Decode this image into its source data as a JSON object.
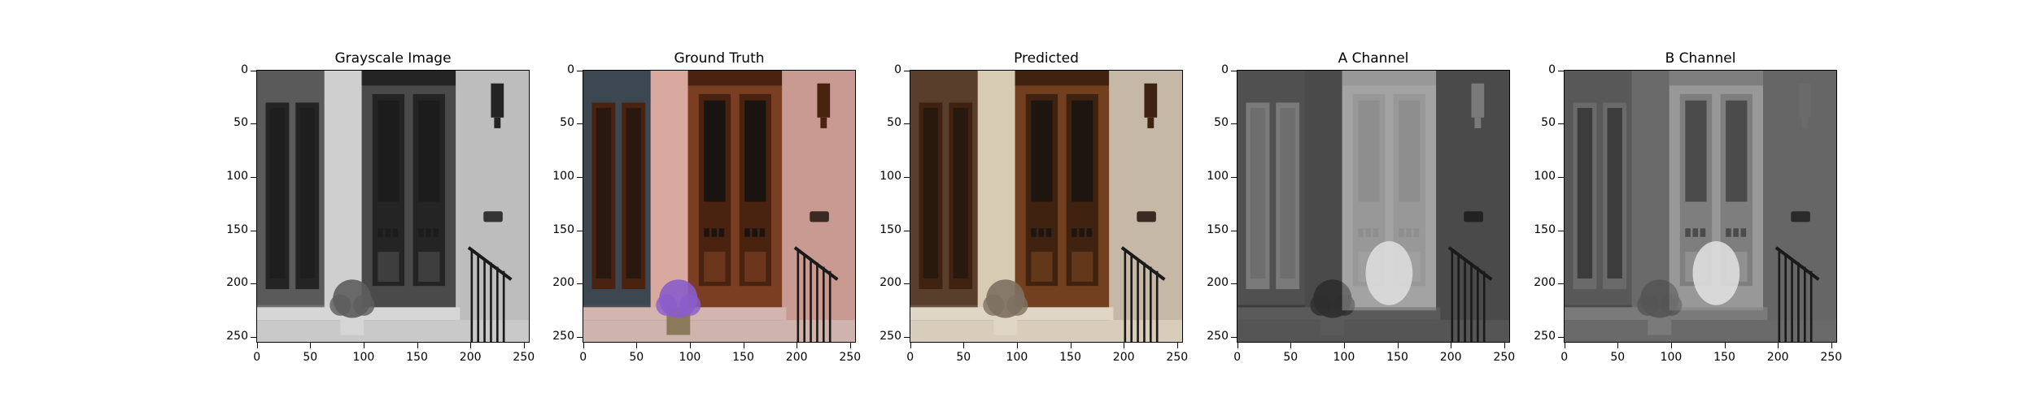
{
  "figure": {
    "panels": [
      {
        "id": "gray",
        "title": "Grayscale Image",
        "style": "gray"
      },
      {
        "id": "gt",
        "title": "Ground Truth",
        "style": "color"
      },
      {
        "id": "pred",
        "title": "Predicted",
        "style": "sepia"
      },
      {
        "id": "a",
        "title": "A Channel",
        "style": "achan"
      },
      {
        "id": "b",
        "title": "B Channel",
        "style": "bchan"
      }
    ],
    "x_ticks": [
      "0",
      "50",
      "100",
      "150",
      "200",
      "250"
    ],
    "y_ticks": [
      "0",
      "50",
      "100",
      "150",
      "200",
      "250"
    ],
    "image_size": 256
  }
}
